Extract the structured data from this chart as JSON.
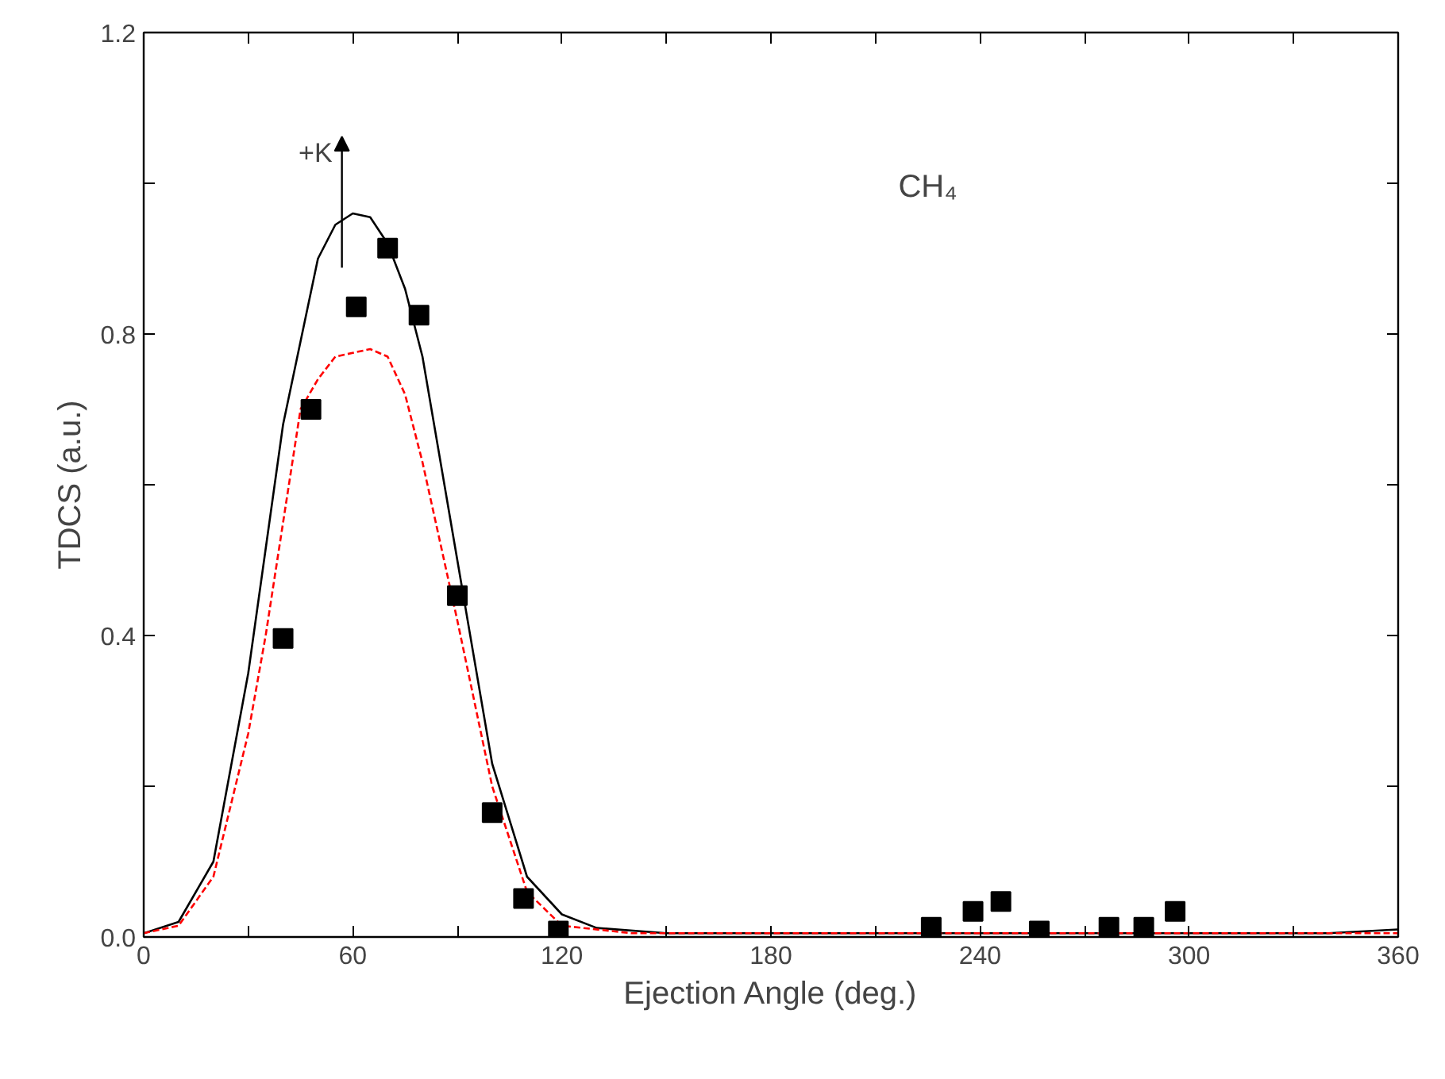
{
  "chart_data": {
    "type": "line",
    "xlabel": "Ejection Angle (deg.)",
    "ylabel": "TDCS (a.u.)",
    "xlim": [
      0,
      360
    ],
    "ylim": [
      0,
      1.2
    ],
    "xticks": [
      0,
      {
        "value": 30,
        "label": null
      },
      60,
      {
        "value": 90,
        "label": null
      },
      120,
      {
        "value": 150,
        "label": null
      },
      180,
      {
        "value": 210,
        "label": null
      },
      240,
      {
        "value": 270,
        "label": null
      },
      300,
      {
        "value": 330,
        "label": null
      },
      360
    ],
    "yticks": [
      {
        "value": 0,
        "label": "0.0"
      },
      {
        "value": 0.2,
        "label": null
      },
      {
        "value": 0.4,
        "label": "0.4"
      },
      {
        "value": 0.6,
        "label": null
      },
      {
        "value": 0.8,
        "label": "0.8"
      },
      {
        "value": 1.0,
        "label": null
      },
      {
        "value": 1.2,
        "label": "1.2"
      }
    ],
    "grid": false,
    "annotations": [
      "+K",
      "CH₄"
    ],
    "series": [
      {
        "color": "#000000",
        "line_style": "solid",
        "x": [
          0,
          10,
          20,
          30,
          40,
          50,
          55,
          60,
          65,
          70,
          75,
          80,
          90,
          100,
          110,
          120,
          130,
          150,
          200,
          300,
          340,
          360
        ],
        "values": [
          0.005,
          0.02,
          0.1,
          0.35,
          0.68,
          0.9,
          0.945,
          0.96,
          0.955,
          0.92,
          0.86,
          0.77,
          0.5,
          0.23,
          0.08,
          0.03,
          0.012,
          0.005,
          0.005,
          0.005,
          0.005,
          0.01
        ]
      },
      {
        "type": "line",
        "color": "#ff0000",
        "line_style": "dashed",
        "x": [
          0,
          10,
          20,
          30,
          35,
          40,
          45,
          50,
          55,
          60,
          65,
          70,
          75,
          80,
          90,
          100,
          110,
          120,
          140,
          360
        ],
        "values": [
          0.005,
          0.015,
          0.08,
          0.27,
          0.4,
          0.55,
          0.7,
          0.74,
          0.77,
          0.775,
          0.78,
          0.77,
          0.72,
          0.63,
          0.42,
          0.2,
          0.06,
          0.015,
          0.005,
          0.005
        ]
      },
      {
        "type": "scatter",
        "color": "#000000",
        "marker": "square",
        "x": [
          40,
          48,
          61,
          70,
          79,
          90,
          100,
          109,
          119,
          226,
          238,
          246,
          257,
          277,
          287,
          296
        ],
        "values": [
          0.396,
          0.7,
          0.836,
          0.914,
          0.825,
          0.453,
          0.165,
          0.051,
          0.008,
          0.013,
          0.034,
          0.047,
          0.008,
          0.013,
          0.013,
          0.034
        ]
      }
    ]
  }
}
